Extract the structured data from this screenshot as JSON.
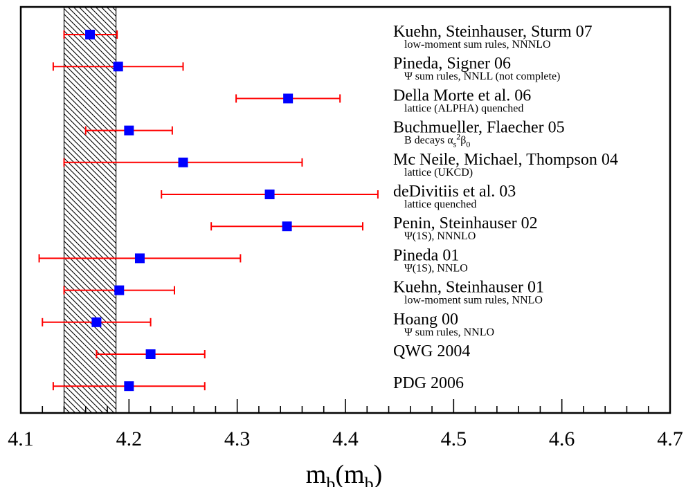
{
  "chart_data": {
    "type": "scatter",
    "xlabel": "m_b(m_b)",
    "xlim": [
      4.1,
      4.7
    ],
    "xticks": [
      "4.1",
      "4.2",
      "4.3",
      "4.4",
      "4.5",
      "4.6",
      "4.7"
    ],
    "band": [
      4.14,
      4.188
    ],
    "colors": {
      "marker": "#0000ff",
      "errorbar": "#ff0000",
      "frame": "#000000"
    },
    "points": [
      {
        "label": "Kuehn, Steinhauser, Sturm 07",
        "sublabel": "low-moment sum rules, NNNLO",
        "value": 4.164,
        "lo": 4.14,
        "hi": 4.189
      },
      {
        "label": "Pineda, Signer 06",
        "sublabel": "Ψ sum rules, NNLL (not complete)",
        "value": 4.19,
        "lo": 4.13,
        "hi": 4.25
      },
      {
        "label": "Della Morte et al. 06",
        "sublabel": "lattice (ALPHA) quenched",
        "value": 4.347,
        "lo": 4.299,
        "hi": 4.395
      },
      {
        "label": "Buchmueller, Flaecher 05",
        "sublabel": "B decays α_s²β_0",
        "value": 4.2,
        "lo": 4.16,
        "hi": 4.24
      },
      {
        "label": "Mc Neile, Michael, Thompson 04",
        "sublabel": "lattice (UKCD)",
        "value": 4.25,
        "lo": 4.14,
        "hi": 4.36
      },
      {
        "label": "deDivitiis et al. 03",
        "sublabel": "lattice quenched",
        "value": 4.33,
        "lo": 4.23,
        "hi": 4.43
      },
      {
        "label": "Penin, Steinhauser 02",
        "sublabel": "Ψ(1S), NNNLO",
        "value": 4.346,
        "lo": 4.276,
        "hi": 4.416
      },
      {
        "label": "Pineda 01",
        "sublabel": "Ψ(1S), NNLO",
        "value": 4.21,
        "lo": 4.117,
        "hi": 4.303
      },
      {
        "label": "Kuehn, Steinhauser 01",
        "sublabel": "low-moment sum rules, NNLO",
        "value": 4.191,
        "lo": 4.14,
        "hi": 4.242
      },
      {
        "label": "Hoang 00",
        "sublabel": "Ψ sum rules, NNLO",
        "value": 4.17,
        "lo": 4.12,
        "hi": 4.22
      },
      {
        "label": "QWG 2004",
        "sublabel": "",
        "value": 4.22,
        "lo": 4.17,
        "hi": 4.27
      },
      {
        "label": "PDG 2006",
        "sublabel": "",
        "value": 4.2,
        "lo": 4.13,
        "hi": 4.27
      }
    ]
  }
}
